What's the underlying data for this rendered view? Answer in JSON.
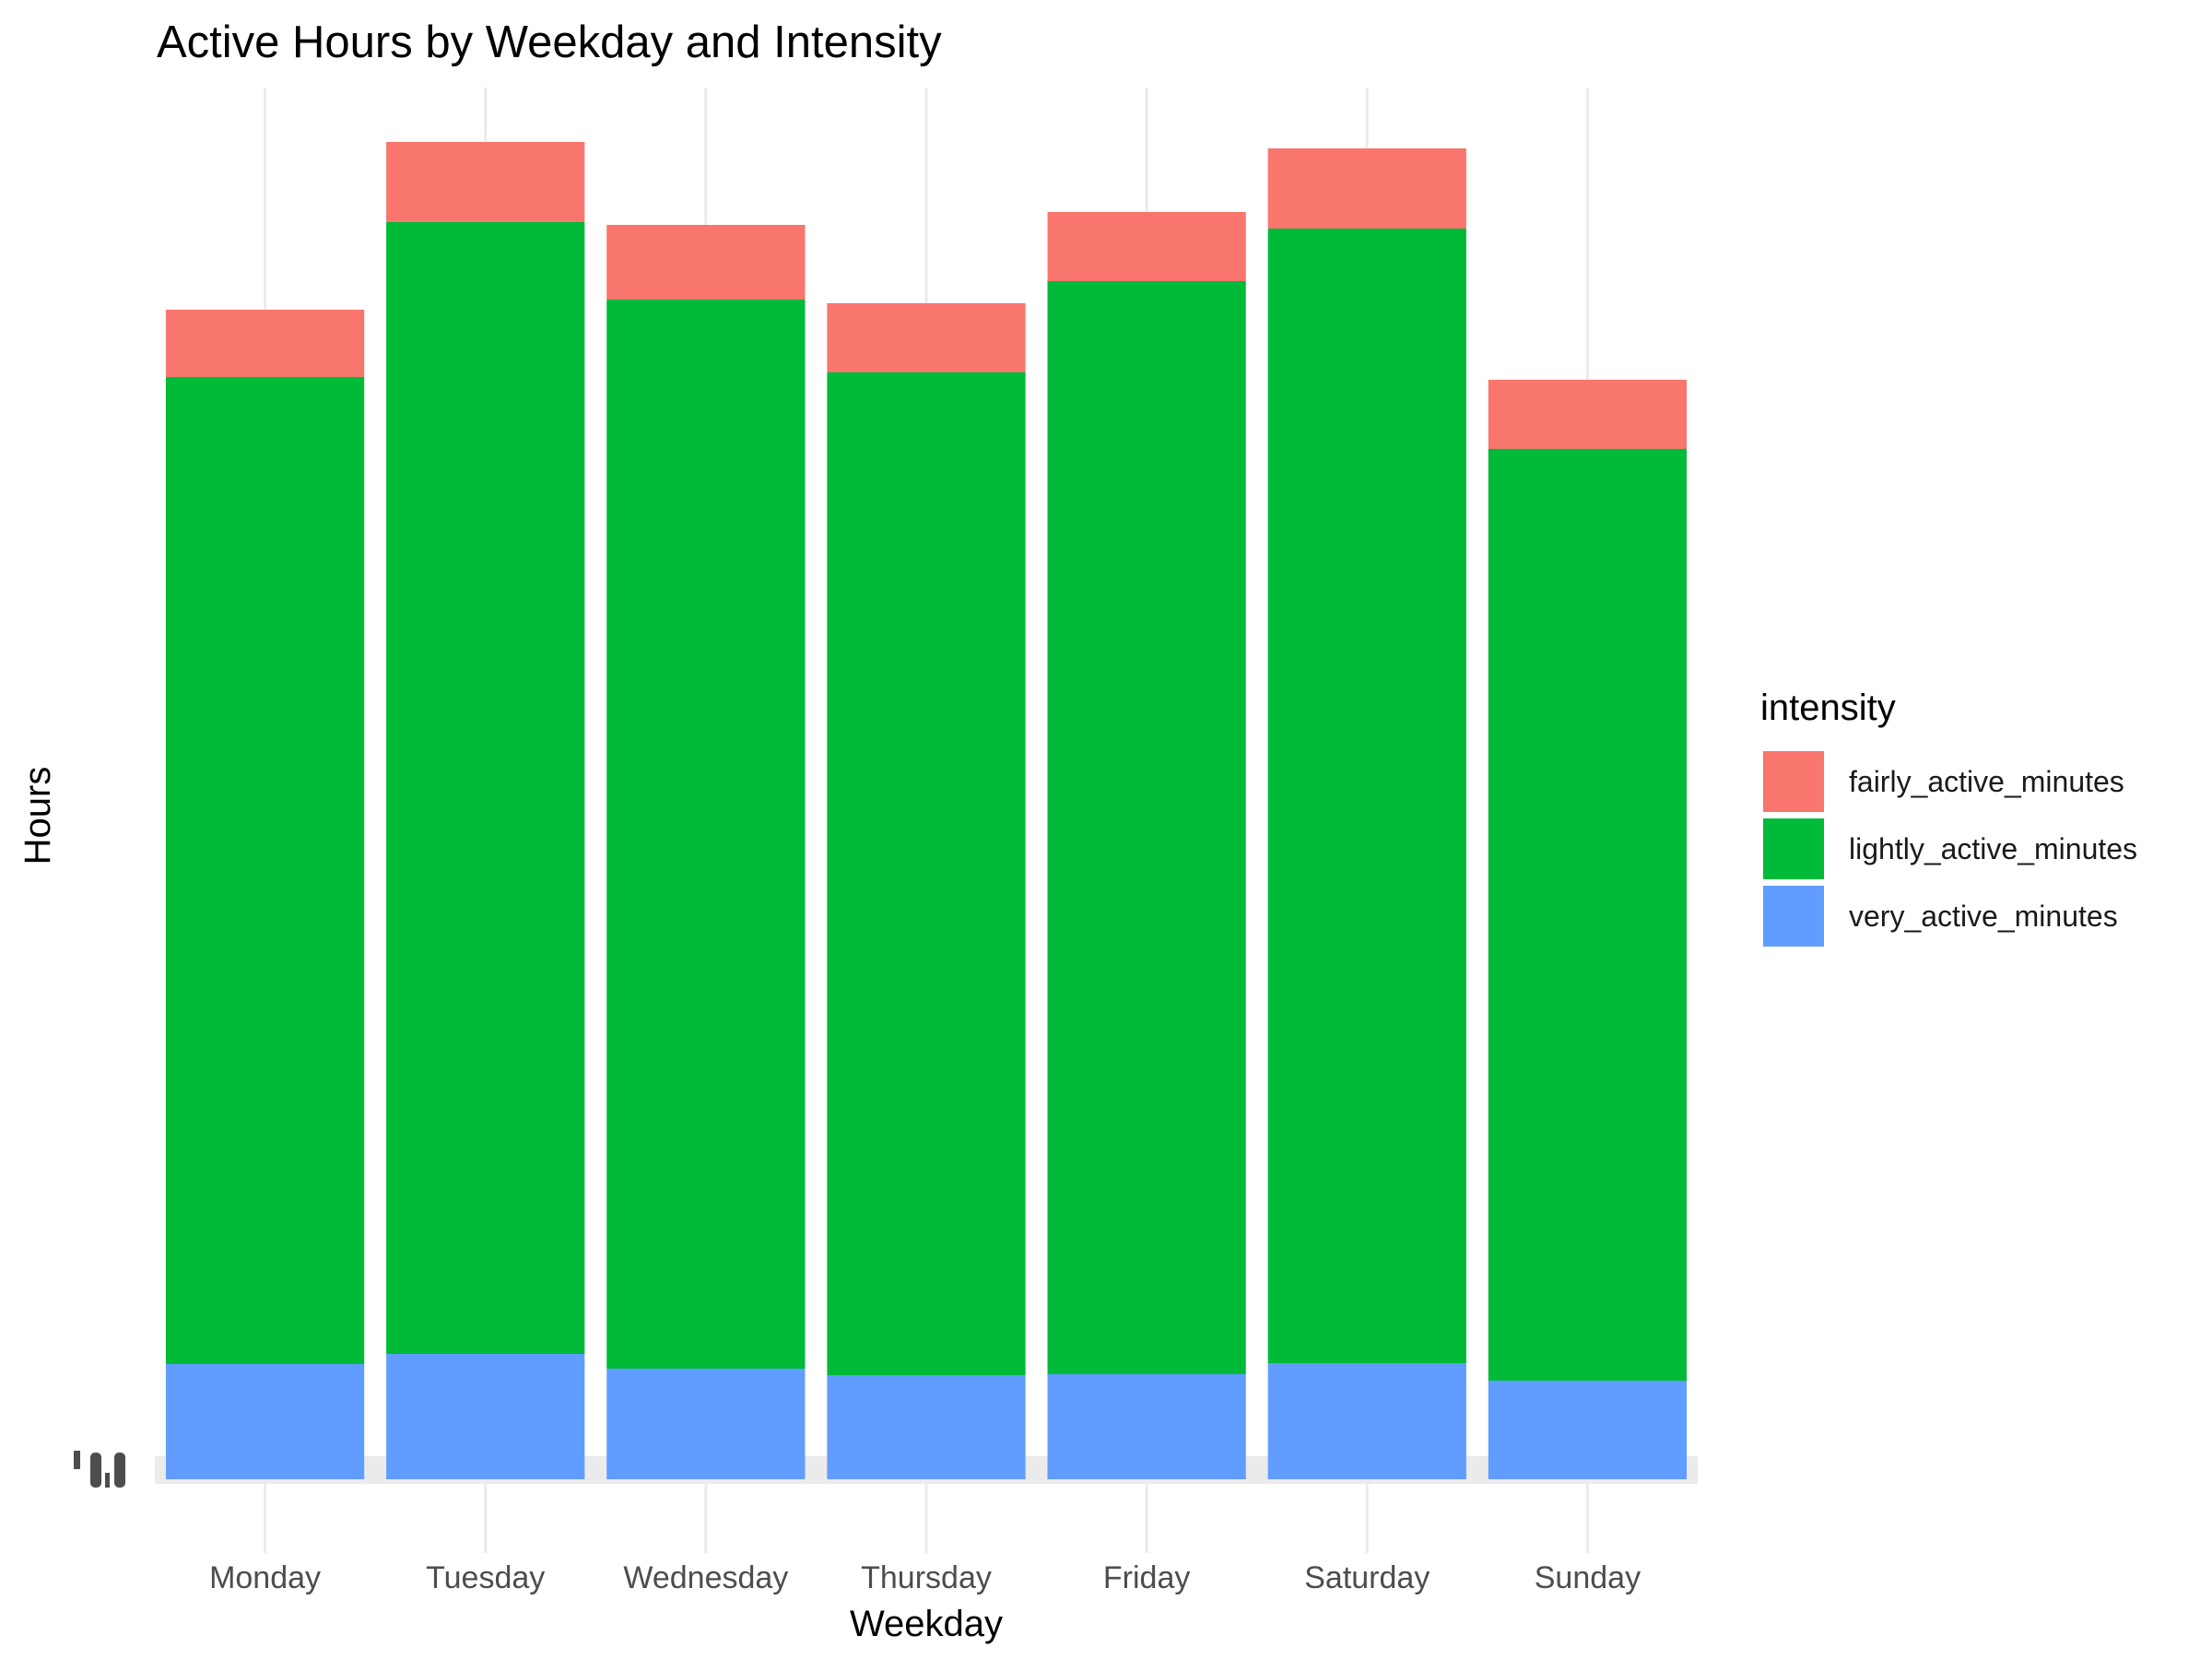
{
  "chart_data": {
    "type": "bar",
    "stacked": true,
    "title": "Active Hours by Weekday and Intensity",
    "xlabel": "Weekday",
    "ylabel": "Hours",
    "categories": [
      "Monday",
      "Tuesday",
      "Wednesday",
      "Thursday",
      "Friday",
      "Saturday",
      "Sunday"
    ],
    "series": [
      {
        "name": "very_active_minutes",
        "color": "#619CFF",
        "values": [
          1.25,
          1.36,
          1.2,
          1.13,
          1.14,
          1.26,
          1.07
        ]
      },
      {
        "name": "lightly_active_minutes",
        "color": "#00BA38",
        "values": [
          10.71,
          12.28,
          11.6,
          10.88,
          11.86,
          12.31,
          10.11
        ]
      },
      {
        "name": "fairly_active_minutes",
        "color": "#F8766D",
        "values": [
          0.73,
          0.87,
          0.81,
          0.75,
          0.75,
          0.87,
          0.75
        ]
      }
    ],
    "legend": {
      "title": "intensity",
      "position": "right",
      "entries": [
        "fairly_active_minutes",
        "lightly_active_minutes",
        "very_active_minutes"
      ]
    },
    "grid": true
  }
}
